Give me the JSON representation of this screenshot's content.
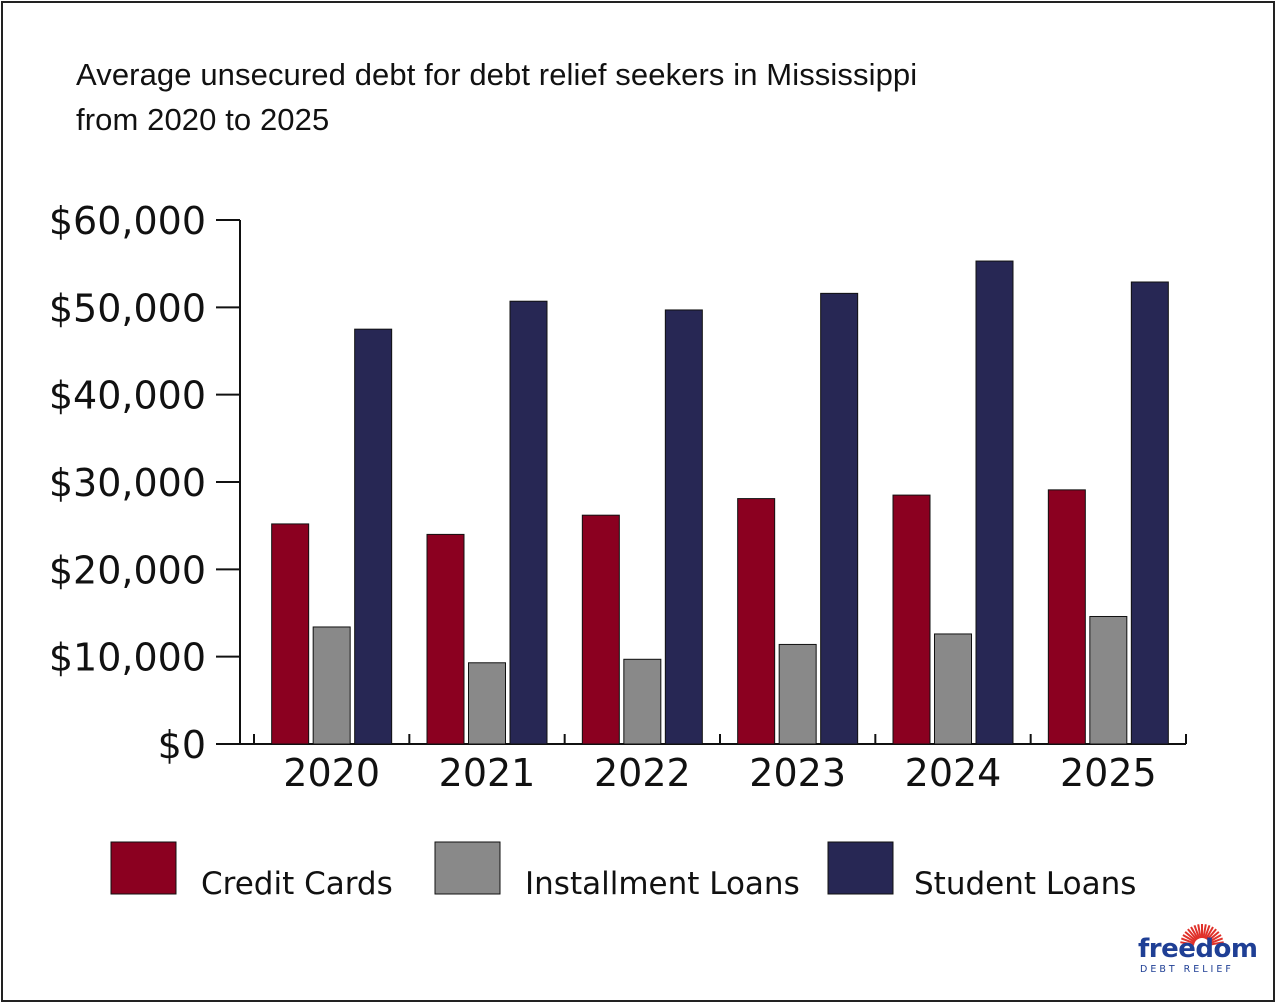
{
  "chart_data": {
    "type": "bar",
    "title": "Average unsecured debt for debt relief seekers in Mississippi",
    "title_line2": "from 2020 to 2025",
    "xlabel": "",
    "ylabel": "",
    "ylim": [
      0,
      60000
    ],
    "yticks": [
      "$0",
      "$10,000",
      "$20,000",
      "$30,000",
      "$40,000",
      "$50,000",
      "$60,000"
    ],
    "ytick_values": [
      0,
      10000,
      20000,
      30000,
      40000,
      50000,
      60000
    ],
    "categories": [
      "2020",
      "2021",
      "2022",
      "2023",
      "2024",
      "2025"
    ],
    "series": [
      {
        "name": "Credit Cards",
        "color": "#8b0020",
        "values": [
          25200,
          24000,
          26200,
          28100,
          28500,
          29100
        ]
      },
      {
        "name": "Installment Loans",
        "color": "#898989",
        "values": [
          13400,
          9300,
          9700,
          11400,
          12600,
          14600
        ]
      },
      {
        "name": "Student Loans",
        "color": "#272754",
        "values": [
          47500,
          50700,
          49700,
          51600,
          55300,
          52900
        ]
      }
    ],
    "grid": false,
    "legend_position": "bottom"
  },
  "logo": {
    "name": "freedom",
    "tagline": "DEBT RELIEF",
    "color": "#1f3f95",
    "accent_color": "#e0312a"
  }
}
